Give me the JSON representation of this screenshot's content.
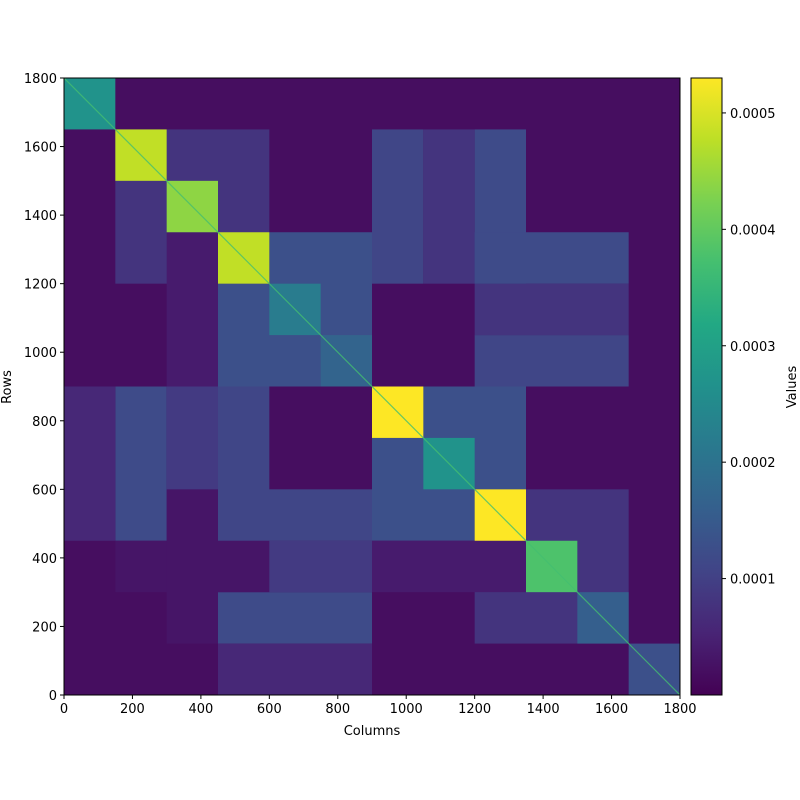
{
  "chart_data": {
    "type": "heatmap",
    "title": "",
    "xlabel": "Columns",
    "ylabel": "Rows",
    "xlim": [
      0,
      1800
    ],
    "ylim": [
      0,
      1800
    ],
    "x_ticks": [
      0,
      200,
      400,
      600,
      800,
      1000,
      1200,
      1400,
      1600,
      1800
    ],
    "y_ticks": [
      0,
      200,
      400,
      600,
      800,
      1000,
      1200,
      1400,
      1600,
      1800
    ],
    "grid": false,
    "colormap": "viridis",
    "colorbar": {
      "label": "Values",
      "range": [
        0,
        0.00053
      ],
      "ticks": [
        0.0001,
        0.0002,
        0.0003,
        0.0004,
        0.0005
      ],
      "tick_labels": [
        "0.0001",
        "0.0002",
        "0.0003",
        "0.0004",
        "0.0005"
      ]
    },
    "background_value": 2e-05,
    "diagonal_blocks": [
      {
        "start": 0,
        "end": 150,
        "value": 0.00027
      },
      {
        "start": 150,
        "end": 300,
        "value": 0.00048
      },
      {
        "start": 300,
        "end": 450,
        "value": 0.00044
      },
      {
        "start": 450,
        "end": 600,
        "value": 0.00048
      },
      {
        "start": 600,
        "end": 750,
        "value": 0.00022
      },
      {
        "start": 750,
        "end": 900,
        "value": 0.00017
      },
      {
        "start": 900,
        "end": 1050,
        "value": 0.00053
      },
      {
        "start": 1050,
        "end": 1200,
        "value": 0.00027
      },
      {
        "start": 1200,
        "end": 1350,
        "value": 0.00053
      },
      {
        "start": 1350,
        "end": 1500,
        "value": 0.00038
      },
      {
        "start": 1500,
        "end": 1650,
        "value": 0.00016
      },
      {
        "start": 1650,
        "end": 1800,
        "value": 0.00013
      }
    ],
    "off_diagonal_blocks": [
      {
        "x": [
          150,
          300
        ],
        "y": [
          450,
          900
        ],
        "value": 0.00012
      },
      {
        "x": [
          300,
          450
        ],
        "y": [
          450,
          900
        ],
        "value": 9e-05
      },
      {
        "x": [
          450,
          600
        ],
        "y": [
          450,
          900
        ],
        "value": 0.00011
      },
      {
        "x": [
          0,
          150
        ],
        "y": [
          450,
          900
        ],
        "value": 6e-05
      },
      {
        "x": [
          900,
          1050
        ],
        "y": [
          1200,
          1650
        ],
        "value": 0.00011
      },
      {
        "x": [
          1050,
          1200
        ],
        "y": [
          1200,
          1650
        ],
        "value": 8e-05
      },
      {
        "x": [
          1200,
          1350
        ],
        "y": [
          1200,
          1650
        ],
        "value": 0.00012
      },
      {
        "x": [
          900,
          1350
        ],
        "y": [
          450,
          900
        ],
        "value": 0.00013
      },
      {
        "x": [
          150,
          600
        ],
        "y": [
          1200,
          1650
        ],
        "value": 8e-05
      },
      {
        "x": [
          900,
          1350
        ],
        "y": [
          300,
          450
        ],
        "value": 4e-05
      },
      {
        "x": [
          150,
          600
        ],
        "y": [
          300,
          450
        ],
        "value": 3e-05
      }
    ]
  }
}
